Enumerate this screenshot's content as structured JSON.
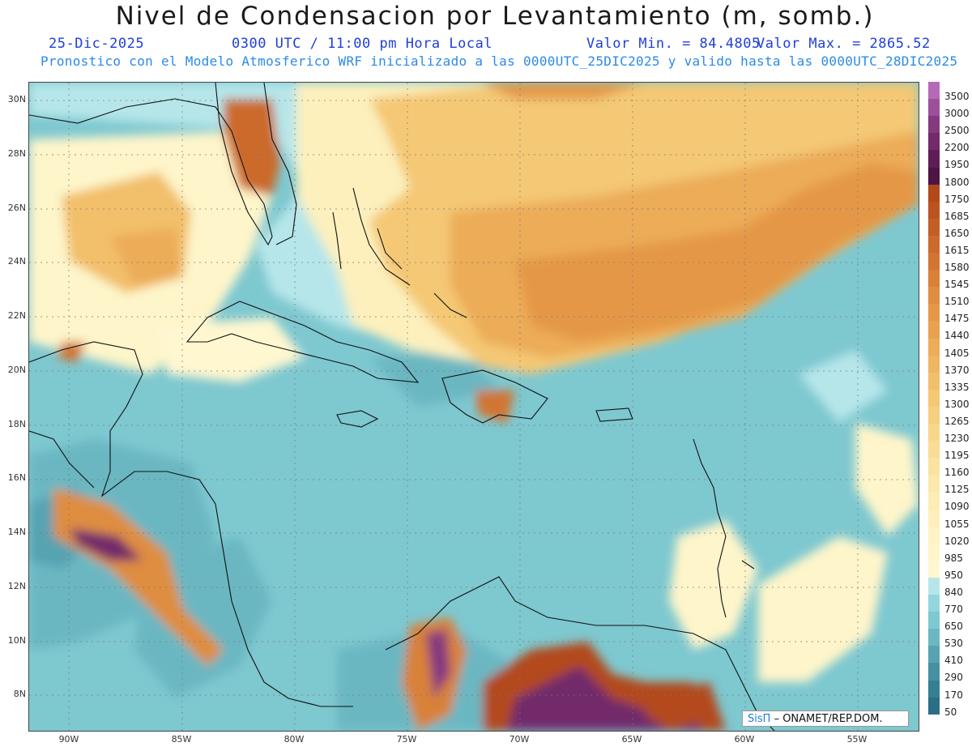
{
  "header": {
    "title": "Nivel de Condensacion por Levantamiento (m, somb.)",
    "date": "25-Dic-2025",
    "time": "0300 UTC / 11:00 pm Hora Local",
    "valmin": "Valor Min. = 84.4805",
    "valmax": "Valor Max. = 2865.52",
    "model_line": "Pronostico con el Modelo Atmosferico WRF inicializado a las 0000UTC_25DIC2025 y valido hasta las  0000UTC_28DIC2025"
  },
  "axes": {
    "lat_labels": [
      "30N",
      "28N",
      "26N",
      "24N",
      "22N",
      "20N",
      "18N",
      "16N",
      "14N",
      "12N",
      "10N",
      "8N"
    ],
    "lon_labels": [
      "90W",
      "85W",
      "80W",
      "75W",
      "70W",
      "65W",
      "60W",
      "55W"
    ]
  },
  "colorbar": {
    "labels": [
      "3500",
      "3000",
      "2500",
      "2200",
      "1950",
      "1800",
      "1750",
      "1685",
      "1650",
      "1615",
      "1580",
      "1545",
      "1510",
      "1475",
      "1440",
      "1405",
      "1370",
      "1335",
      "1300",
      "1265",
      "1230",
      "1195",
      "1160",
      "1125",
      "1090",
      "1055",
      "1020",
      "985",
      "950",
      "840",
      "770",
      "650",
      "530",
      "410",
      "290",
      "170",
      "50"
    ],
    "colors": [
      "#b56ab8",
      "#9e4f9c",
      "#86397f",
      "#722a6a",
      "#5f1d55",
      "#4e1442",
      "#b3481b",
      "#bb5320",
      "#c35e26",
      "#cb6a2c",
      "#d27532",
      "#d98139",
      "#df8d40",
      "#e49847",
      "#e8a24f",
      "#ecac58",
      "#efb561",
      "#f2bf6b",
      "#f4c875",
      "#f6d07f",
      "#f7d78a",
      "#f9dd95",
      "#fae3a0",
      "#fbe8aa",
      "#fcedb4",
      "#fdf0bd",
      "#fdf3c4",
      "#fef5ca",
      "#fff7d0",
      "#b6e6ea",
      "#93d6df",
      "#7ec8d0",
      "#6bb7c2",
      "#57a3b2",
      "#4590a2",
      "#357f93",
      "#2a6f85"
    ]
  },
  "credit": {
    "brand": "SisΠ",
    "text": "– ONAMET/REP.DOM."
  }
}
